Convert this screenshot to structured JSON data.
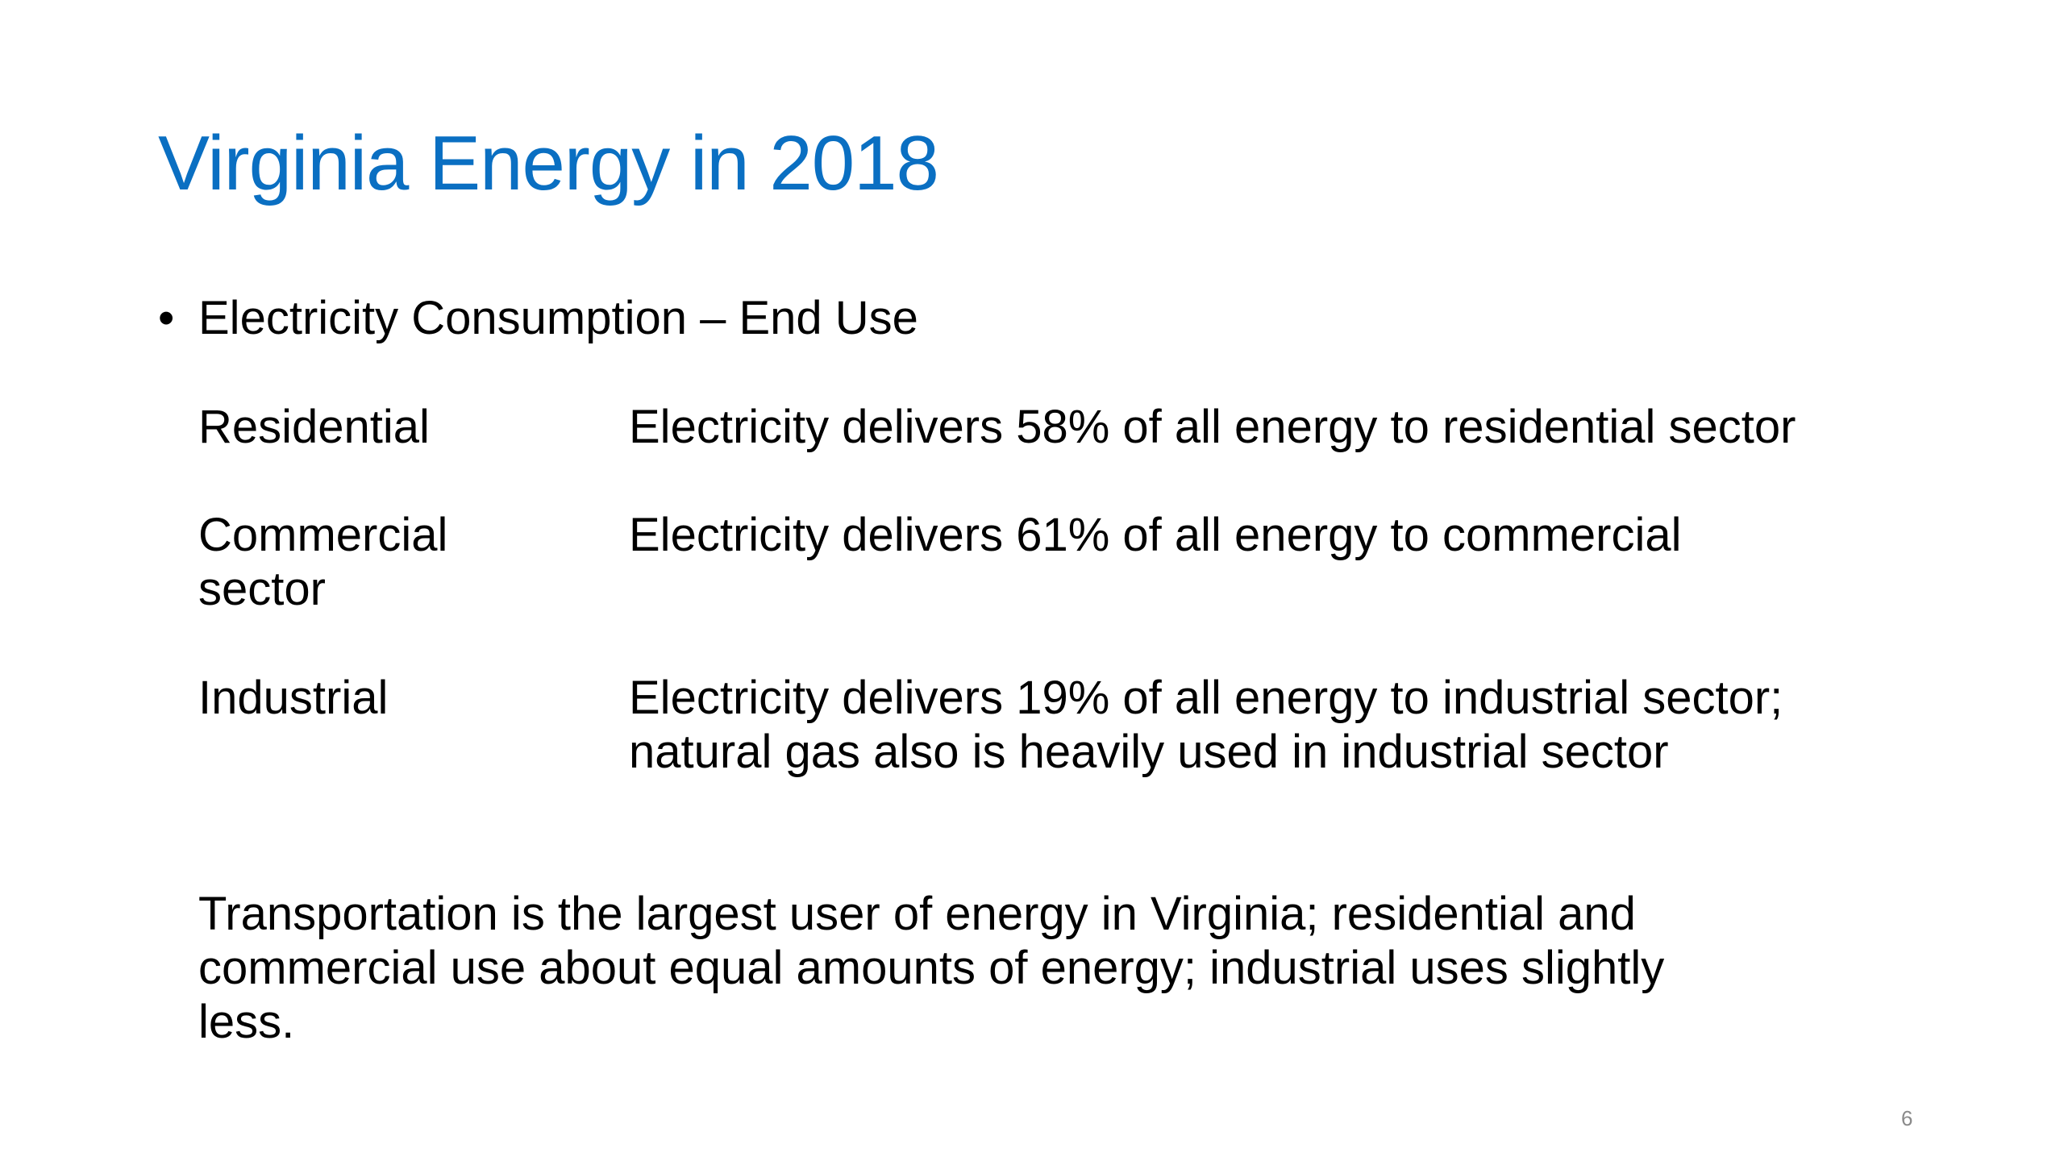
{
  "slide": {
    "title": "Virginia Energy in 2018",
    "bullet": {
      "marker": "•",
      "text": "Electricity Consumption – End Use"
    },
    "sectors": [
      {
        "label": "Residential",
        "description": "Electricity delivers 58% of all energy to residential sector"
      },
      {
        "label": "Commercial\nsector",
        "description": "Electricity delivers 61% of all energy to commercial"
      },
      {
        "label": "Industrial",
        "description": "Electricity delivers 19% of all energy to industrial sector;\nnatural gas also is heavily used in industrial sector"
      }
    ],
    "summary": "Transportation is the largest user of energy in Virginia; residential and\ncommercial use about equal amounts of energy; industrial uses slightly\nless.",
    "page_number": "6"
  }
}
